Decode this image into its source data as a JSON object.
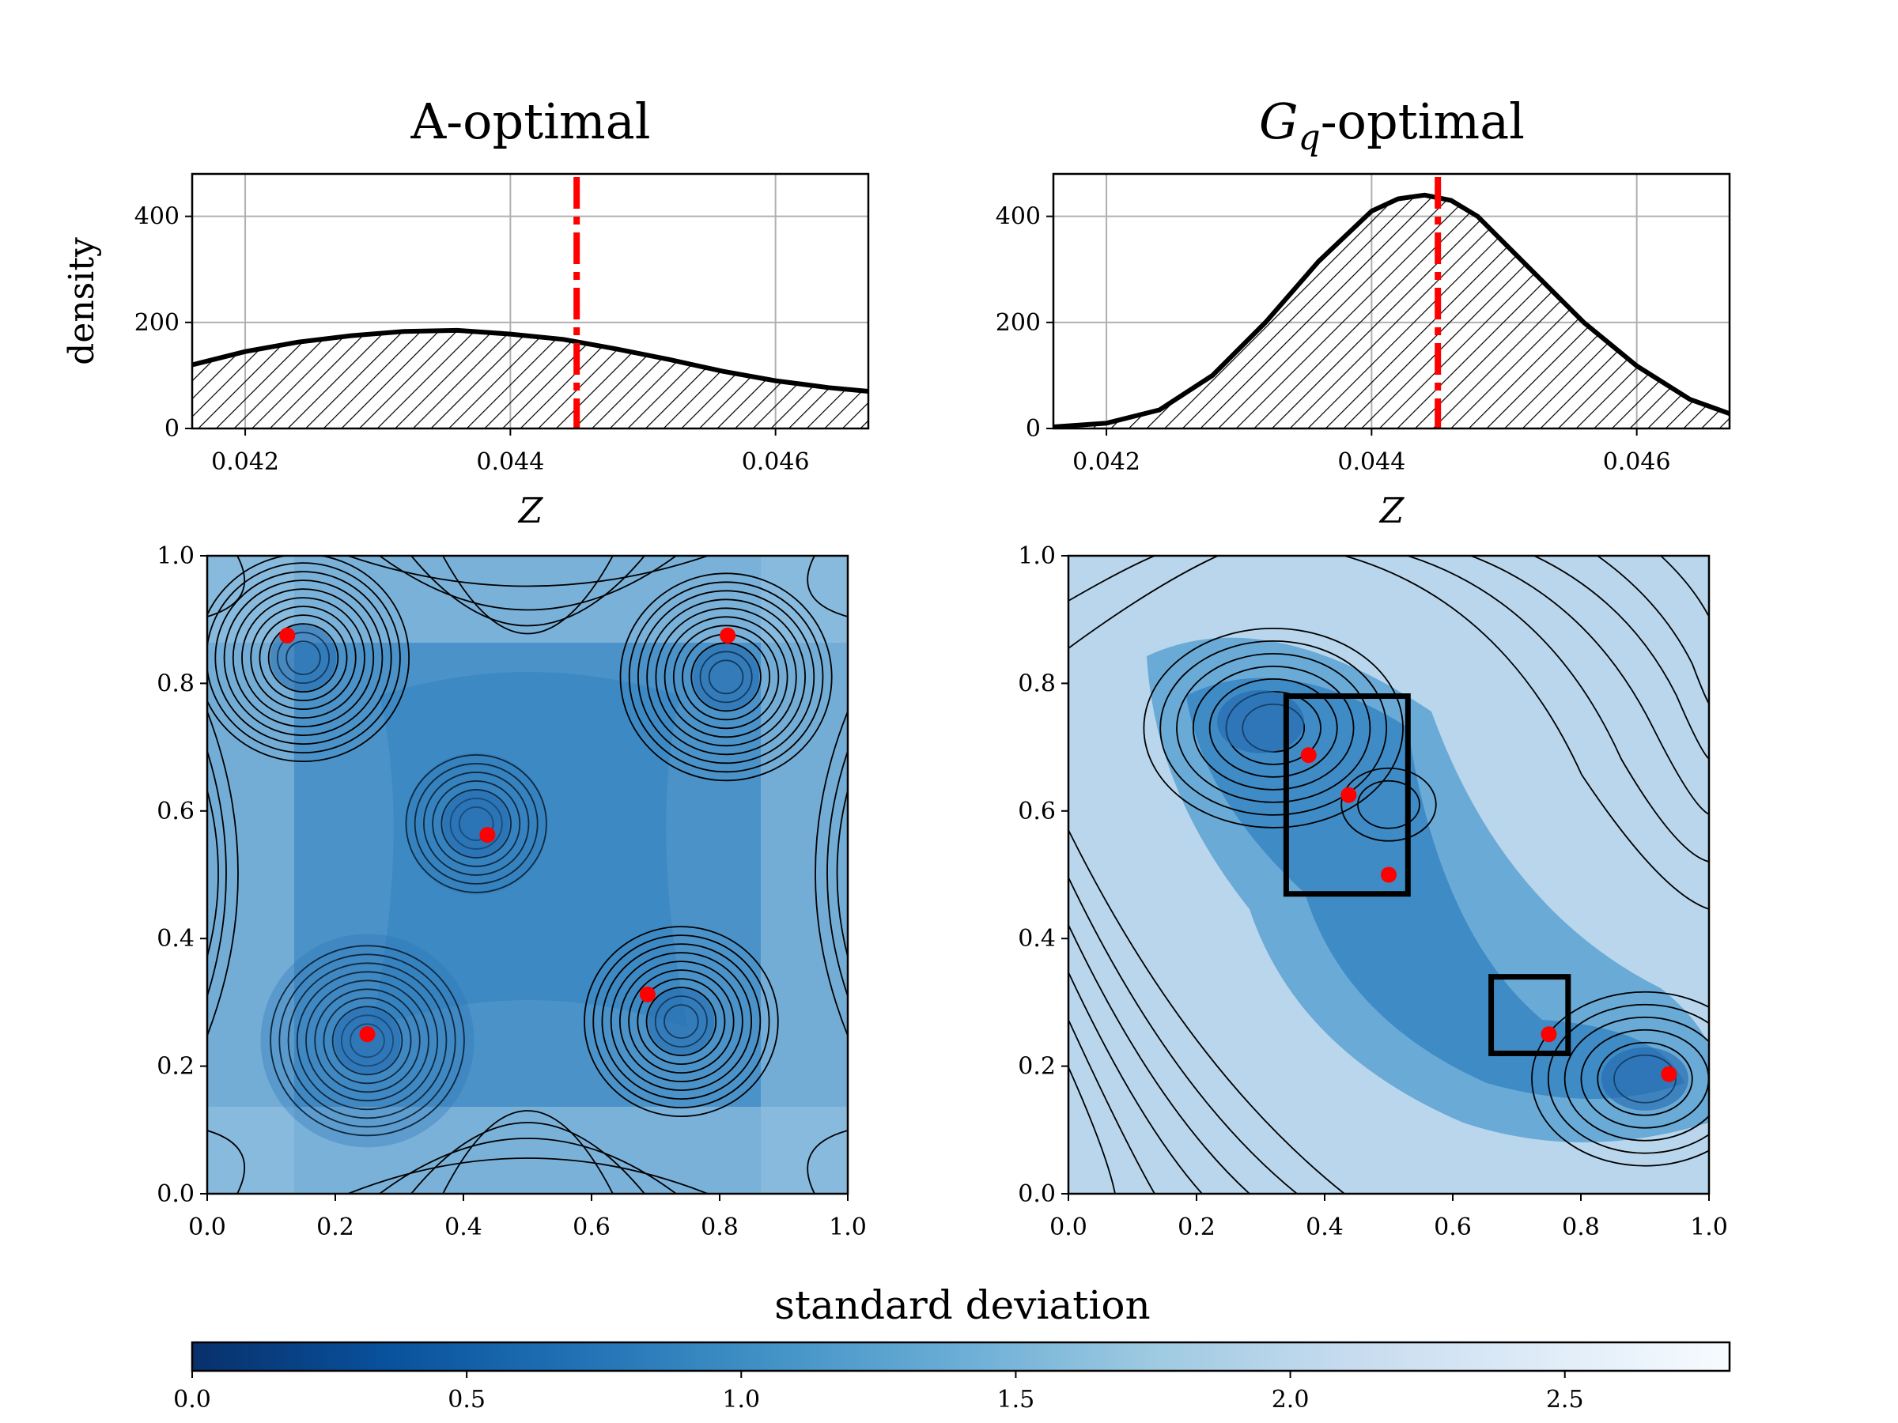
{
  "chart_data": [
    {
      "id": "hist_a",
      "type": "area",
      "title": "A-optimal",
      "xlabel": "Z",
      "ylabel": "density",
      "xlim": [
        0.0416,
        0.0467
      ],
      "ylim": [
        0,
        480
      ],
      "xticks": [
        0.042,
        0.044,
        0.046
      ],
      "xtick_labels": [
        "0.042",
        "0.044",
        "0.046"
      ],
      "yticks": [
        0,
        200,
        400
      ],
      "ytick_labels": [
        "0",
        "200",
        "400"
      ],
      "grid": true,
      "hatched": true,
      "reference_line_x": 0.0445,
      "x": [
        0.0416,
        0.042,
        0.0424,
        0.0428,
        0.0432,
        0.0436,
        0.044,
        0.0444,
        0.0448,
        0.0452,
        0.0456,
        0.046,
        0.0464,
        0.0467
      ],
      "y": [
        120,
        145,
        163,
        175,
        183,
        185,
        178,
        168,
        150,
        130,
        108,
        90,
        77,
        70
      ]
    },
    {
      "id": "hist_g",
      "type": "area",
      "title": "G",
      "title_sub": "q",
      "title_suffix": "-optimal",
      "xlabel": "Z",
      "ylabel": "",
      "xlim": [
        0.0416,
        0.0467
      ],
      "ylim": [
        0,
        480
      ],
      "xticks": [
        0.042,
        0.044,
        0.046
      ],
      "xtick_labels": [
        "0.042",
        "0.044",
        "0.046"
      ],
      "yticks": [
        0,
        200,
        400
      ],
      "ytick_labels": [
        "0",
        "200",
        "400"
      ],
      "grid": true,
      "hatched": true,
      "reference_line_x": 0.0445,
      "x": [
        0.0416,
        0.042,
        0.0424,
        0.0428,
        0.0432,
        0.0436,
        0.044,
        0.0442,
        0.0444,
        0.0446,
        0.0448,
        0.0452,
        0.0456,
        0.046,
        0.0464,
        0.0467
      ],
      "y": [
        3,
        10,
        35,
        100,
        200,
        315,
        410,
        433,
        440,
        430,
        400,
        300,
        200,
        118,
        55,
        28
      ]
    },
    {
      "id": "map_a",
      "type": "heatmap",
      "xlim": [
        0,
        1
      ],
      "ylim": [
        0,
        1
      ],
      "xticks": [
        0,
        0.2,
        0.4,
        0.6,
        0.8,
        1.0
      ],
      "xtick_labels": [
        "0.0",
        "0.2",
        "0.4",
        "0.6",
        "0.8",
        "1.0"
      ],
      "yticks": [
        0,
        0.2,
        0.4,
        0.6,
        0.8,
        1.0
      ],
      "ytick_labels": [
        "0.0",
        "0.2",
        "0.4",
        "0.6",
        "0.8",
        "1.0"
      ],
      "sensors": [
        {
          "x": 0.125,
          "y": 0.875
        },
        {
          "x": 0.8125,
          "y": 0.875
        },
        {
          "x": 0.4375,
          "y": 0.5625
        },
        {
          "x": 0.25,
          "y": 0.25
        },
        {
          "x": 0.6875,
          "y": 0.3125
        }
      ],
      "boxes": []
    },
    {
      "id": "map_g",
      "type": "heatmap",
      "xlim": [
        0,
        1
      ],
      "ylim": [
        0,
        1
      ],
      "xticks": [
        0,
        0.2,
        0.4,
        0.6,
        0.8,
        1.0
      ],
      "xtick_labels": [
        "0.0",
        "0.2",
        "0.4",
        "0.6",
        "0.8",
        "1.0"
      ],
      "yticks": [
        0,
        0.2,
        0.4,
        0.6,
        0.8,
        1.0
      ],
      "ytick_labels": [
        "0.0",
        "0.2",
        "0.4",
        "0.6",
        "0.8",
        "1.0"
      ],
      "sensors": [
        {
          "x": 0.375,
          "y": 0.6875
        },
        {
          "x": 0.4375,
          "y": 0.625
        },
        {
          "x": 0.5,
          "y": 0.5
        },
        {
          "x": 0.75,
          "y": 0.25
        },
        {
          "x": 0.9375,
          "y": 0.1875
        }
      ],
      "boxes": [
        {
          "x0": 0.34,
          "x1": 0.53,
          "y0": 0.47,
          "y1": 0.78
        },
        {
          "x0": 0.66,
          "x1": 0.78,
          "y0": 0.22,
          "y1": 0.34
        }
      ]
    },
    {
      "id": "colorbar",
      "type": "colorbar",
      "label": "standard deviation",
      "range": [
        0,
        2.8
      ],
      "ticks": [
        0,
        0.5,
        1.0,
        1.5,
        2.0,
        2.5
      ],
      "tick_labels": [
        "0.0",
        "0.5",
        "1.0",
        "1.5",
        "2.0",
        "2.5"
      ]
    }
  ],
  "colors": {
    "reference_line": "#ff0000",
    "sensor": "#ff0000",
    "grid": "#b0b0b0",
    "cmap": [
      "#08306b",
      "#08519c",
      "#2171b5",
      "#4292c6",
      "#6baed6",
      "#9ecae1",
      "#c6dbef",
      "#deebf7",
      "#f7fbff"
    ]
  }
}
